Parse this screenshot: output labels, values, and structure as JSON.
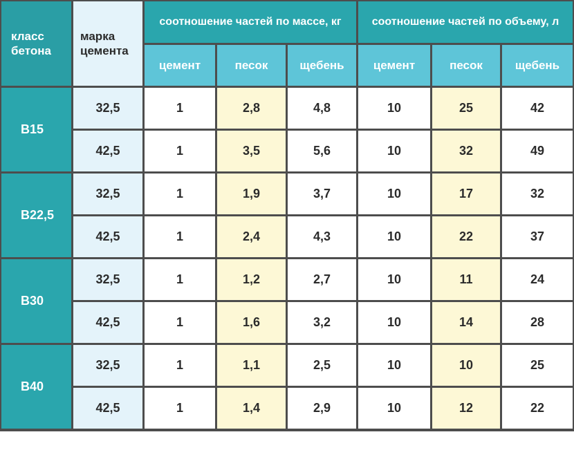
{
  "headers": {
    "concrete_class": "класс бетона",
    "cement_grade": "марка цемента",
    "mass_group": "соотношение частей по массе, кг",
    "volume_group": "соотношение частей по объему, л",
    "sub": [
      "цемент",
      "песок",
      "щебень",
      "цемент",
      "песок",
      "щебень"
    ]
  },
  "classes": [
    {
      "name": "B15",
      "rows": [
        {
          "grade": "32,5",
          "values": [
            "1",
            "2,8",
            "4,8",
            "10",
            "25",
            "42"
          ]
        },
        {
          "grade": "42,5",
          "values": [
            "1",
            "3,5",
            "5,6",
            "10",
            "32",
            "49"
          ]
        }
      ]
    },
    {
      "name": "B22,5",
      "rows": [
        {
          "grade": "32,5",
          "values": [
            "1",
            "1,9",
            "3,7",
            "10",
            "17",
            "32"
          ]
        },
        {
          "grade": "42,5",
          "values": [
            "1",
            "2,4",
            "4,3",
            "10",
            "22",
            "37"
          ]
        }
      ]
    },
    {
      "name": "B30",
      "rows": [
        {
          "grade": "32,5",
          "values": [
            "1",
            "1,2",
            "2,7",
            "10",
            "11",
            "24"
          ]
        },
        {
          "grade": "42,5",
          "values": [
            "1",
            "1,6",
            "3,2",
            "10",
            "14",
            "28"
          ]
        }
      ]
    },
    {
      "name": "B40",
      "rows": [
        {
          "grade": "32,5",
          "values": [
            "1",
            "1,1",
            "2,5",
            "10",
            "10",
            "25"
          ]
        },
        {
          "grade": "42,5",
          "values": [
            "1",
            "1,4",
            "2,9",
            "10",
            "12",
            "22"
          ]
        }
      ]
    }
  ]
}
